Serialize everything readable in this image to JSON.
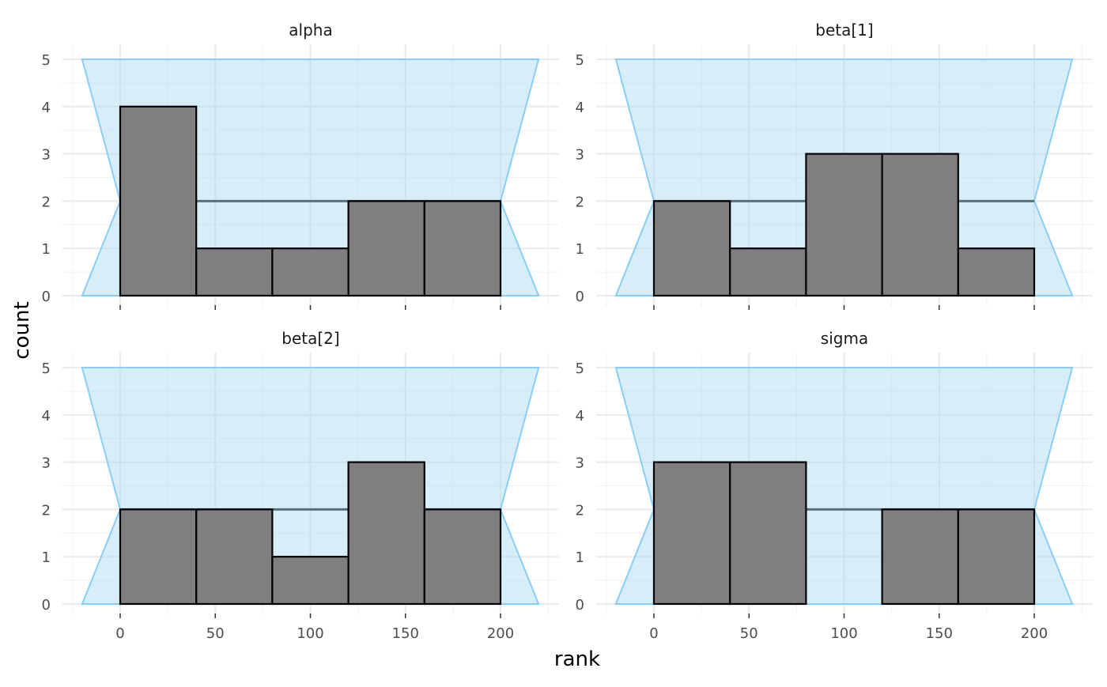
{
  "chart_data": {
    "type": "bar",
    "subtype": "faceted histogram with uniformity band",
    "xlabel": "rank",
    "ylabel": "count",
    "x_ticks": [
      0,
      50,
      100,
      150,
      200
    ],
    "y_ticks": [
      0,
      1,
      2,
      3,
      4,
      5
    ],
    "xlim": [
      -30,
      230
    ],
    "ylim": [
      0,
      5.2
    ],
    "grid": true,
    "band": {
      "outer": {
        "x": [
          -20,
          220
        ],
        "y": [
          0,
          5
        ]
      },
      "pinch": {
        "x": [
          0,
          200
        ],
        "y": 2
      },
      "expected_count": 2,
      "fill_color": "#a6d9f0",
      "border_color": "#87cefa"
    },
    "bar_color": "#7f7f7f",
    "bin_edges": [
      0,
      40,
      80,
      120,
      160,
      200
    ],
    "panels": [
      {
        "title": "alpha",
        "values": [
          4,
          1,
          1,
          2,
          2
        ]
      },
      {
        "title": "beta[1]",
        "values": [
          2,
          1,
          3,
          3,
          1
        ]
      },
      {
        "title": "beta[2]",
        "values": [
          2,
          2,
          1,
          3,
          2
        ]
      },
      {
        "title": "sigma",
        "values": [
          3,
          3,
          0,
          2,
          2
        ]
      }
    ]
  }
}
